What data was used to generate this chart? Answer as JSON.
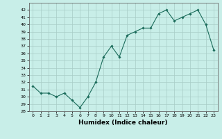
{
  "x": [
    0,
    1,
    2,
    3,
    4,
    5,
    6,
    7,
    8,
    9,
    10,
    11,
    12,
    13,
    14,
    15,
    16,
    17,
    18,
    19,
    20,
    21,
    22,
    23
  ],
  "y": [
    31.5,
    30.5,
    30.5,
    30.0,
    30.5,
    29.5,
    28.5,
    30.0,
    32.0,
    35.5,
    37.0,
    35.5,
    38.5,
    39.0,
    39.5,
    39.5,
    41.5,
    42.0,
    40.5,
    41.0,
    41.5,
    42.0,
    40.0,
    36.5
  ],
  "line_color": "#1a6b5a",
  "marker": "D",
  "marker_size": 1.8,
  "line_width": 0.8,
  "bg_color": "#c8eee8",
  "grid_color": "#a8ccc6",
  "xlabel": "Humidex (Indice chaleur)",
  "xlim": [
    -0.5,
    23.5
  ],
  "ylim": [
    28,
    43
  ],
  "yticks": [
    28,
    29,
    30,
    31,
    32,
    33,
    34,
    35,
    36,
    37,
    38,
    39,
    40,
    41,
    42
  ],
  "xticks": [
    0,
    1,
    2,
    3,
    4,
    5,
    6,
    7,
    8,
    9,
    10,
    11,
    12,
    13,
    14,
    15,
    16,
    17,
    18,
    19,
    20,
    21,
    22,
    23
  ],
  "tick_fontsize": 4.5,
  "xlabel_fontsize": 6.5
}
